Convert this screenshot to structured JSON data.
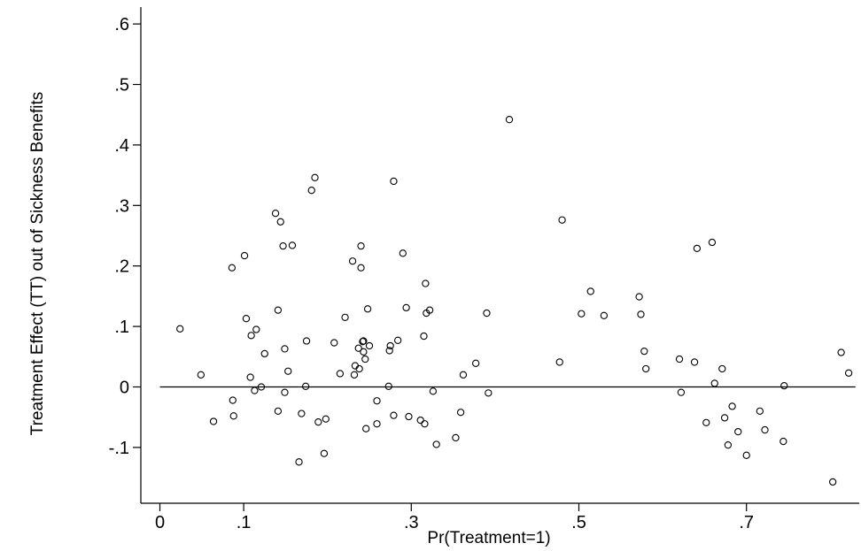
{
  "chart_data": {
    "type": "scatter",
    "xlabel": "Pr(Treatment=1)",
    "ylabel": "Treatment Effect (TT) out of Sickness Benefits",
    "xlim": [
      0,
      0.83
    ],
    "ylim": [
      -0.175,
      0.625
    ],
    "xticks": [
      0,
      0.1,
      0.3,
      0.5,
      0.7
    ],
    "xtick_labels": [
      "0",
      ".1",
      ".3",
      ".5",
      ".7"
    ],
    "yticks": [
      -0.1,
      0,
      0.1,
      0.2,
      0.3,
      0.4,
      0.5,
      0.6
    ],
    "ytick_labels": [
      "-.1",
      "0",
      ".1",
      ".2",
      ".3",
      ".4",
      ".5",
      ".6"
    ],
    "reference_line_y": 0,
    "grid": false,
    "legend": "none",
    "marker": "hollow-circle",
    "points": [
      [
        0.024,
        0.096
      ],
      [
        0.049,
        0.02
      ],
      [
        0.064,
        -0.057
      ],
      [
        0.086,
        0.197
      ],
      [
        0.087,
        -0.022
      ],
      [
        0.088,
        -0.048
      ],
      [
        0.101,
        0.217
      ],
      [
        0.103,
        0.113
      ],
      [
        0.108,
        0.016
      ],
      [
        0.109,
        0.085
      ],
      [
        0.113,
        -0.006
      ],
      [
        0.115,
        0.095
      ],
      [
        0.121,
        0.0
      ],
      [
        0.125,
        0.055
      ],
      [
        0.138,
        0.287
      ],
      [
        0.141,
        0.127
      ],
      [
        0.141,
        -0.04
      ],
      [
        0.144,
        0.273
      ],
      [
        0.147,
        0.233
      ],
      [
        0.149,
        0.063
      ],
      [
        0.149,
        -0.009
      ],
      [
        0.153,
        0.026
      ],
      [
        0.158,
        0.234
      ],
      [
        0.166,
        -0.124
      ],
      [
        0.169,
        -0.044
      ],
      [
        0.174,
        0.001
      ],
      [
        0.175,
        0.076
      ],
      [
        0.181,
        0.325
      ],
      [
        0.185,
        0.346
      ],
      [
        0.189,
        -0.058
      ],
      [
        0.196,
        -0.11
      ],
      [
        0.198,
        -0.053
      ],
      [
        0.208,
        0.073
      ],
      [
        0.215,
        0.022
      ],
      [
        0.221,
        0.115
      ],
      [
        0.23,
        0.208
      ],
      [
        0.232,
        0.02
      ],
      [
        0.233,
        0.035
      ],
      [
        0.237,
        0.064
      ],
      [
        0.238,
        0.03
      ],
      [
        0.24,
        0.233
      ],
      [
        0.24,
        0.197
      ],
      [
        0.242,
        0.075
      ],
      [
        0.243,
        0.076
      ],
      [
        0.243,
        0.058
      ],
      [
        0.245,
        0.046
      ],
      [
        0.246,
        -0.069
      ],
      [
        0.248,
        0.129
      ],
      [
        0.25,
        0.068
      ],
      [
        0.259,
        -0.023
      ],
      [
        0.259,
        -0.061
      ],
      [
        0.273,
        0.001
      ],
      [
        0.274,
        0.06
      ],
      [
        0.275,
        0.068
      ],
      [
        0.279,
        0.34
      ],
      [
        0.279,
        -0.047
      ],
      [
        0.284,
        0.077
      ],
      [
        0.29,
        0.221
      ],
      [
        0.294,
        0.131
      ],
      [
        0.297,
        -0.049
      ],
      [
        0.311,
        -0.055
      ],
      [
        0.315,
        0.084
      ],
      [
        0.316,
        -0.061
      ],
      [
        0.317,
        0.171
      ],
      [
        0.318,
        0.122
      ],
      [
        0.322,
        0.127
      ],
      [
        0.326,
        -0.007
      ],
      [
        0.33,
        -0.095
      ],
      [
        0.353,
        -0.084
      ],
      [
        0.359,
        -0.042
      ],
      [
        0.362,
        0.02
      ],
      [
        0.377,
        0.039
      ],
      [
        0.39,
        0.122
      ],
      [
        0.392,
        -0.01
      ],
      [
        0.417,
        0.442
      ],
      [
        0.477,
        0.041
      ],
      [
        0.48,
        0.276
      ],
      [
        0.503,
        0.121
      ],
      [
        0.514,
        0.158
      ],
      [
        0.53,
        0.118
      ],
      [
        0.572,
        0.149
      ],
      [
        0.574,
        0.12
      ],
      [
        0.578,
        0.059
      ],
      [
        0.58,
        0.03
      ],
      [
        0.62,
        0.046
      ],
      [
        0.622,
        -0.009
      ],
      [
        0.638,
        0.041
      ],
      [
        0.641,
        0.229
      ],
      [
        0.652,
        -0.059
      ],
      [
        0.659,
        0.239
      ],
      [
        0.662,
        0.006
      ],
      [
        0.671,
        0.03
      ],
      [
        0.674,
        -0.051
      ],
      [
        0.678,
        -0.096
      ],
      [
        0.683,
        -0.032
      ],
      [
        0.69,
        -0.074
      ],
      [
        0.7,
        -0.113
      ],
      [
        0.716,
        -0.04
      ],
      [
        0.722,
        -0.071
      ],
      [
        0.744,
        -0.09
      ],
      [
        0.745,
        0.002
      ],
      [
        0.803,
        -0.157
      ],
      [
        0.813,
        0.057
      ],
      [
        0.822,
        0.023
      ]
    ]
  }
}
